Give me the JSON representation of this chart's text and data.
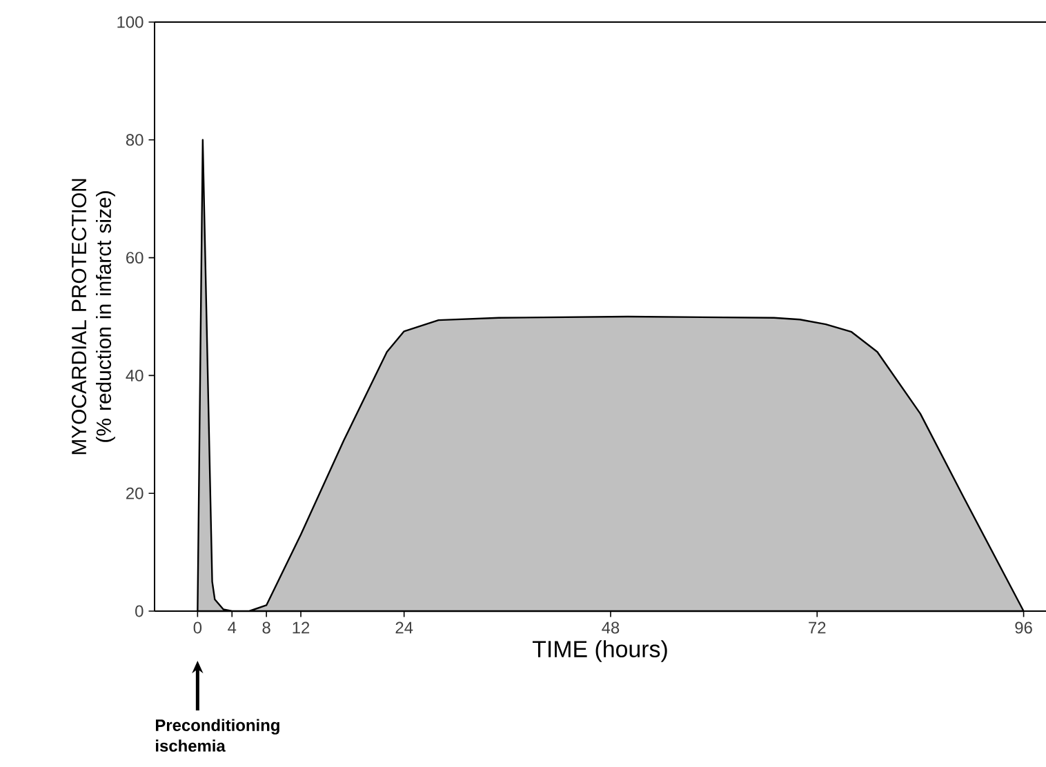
{
  "chart_data": {
    "type": "area",
    "xlabel": "TIME  (hours)",
    "ylabel": "MYOCARDIAL PROTECTION (% reduction in infarct size)",
    "x": [
      0,
      0.6,
      1.7,
      2,
      3,
      4,
      6,
      8,
      12,
      17,
      22,
      24,
      28,
      35,
      50,
      67,
      70,
      73,
      76,
      79,
      84,
      89,
      96
    ],
    "values": [
      0,
      80,
      5,
      2,
      0.3,
      0,
      0,
      1,
      13,
      29,
      44,
      47.5,
      49.4,
      49.8,
      50,
      49.8,
      49.5,
      48.7,
      47.4,
      44,
      33.5,
      19.4,
      0
    ],
    "color": "#c0c0c0",
    "xlim": [
      -5,
      98.6
    ],
    "ylim": [
      0,
      100
    ],
    "xticks": [
      0,
      4,
      8,
      12,
      24,
      48,
      72,
      96
    ],
    "yticks": [
      0,
      20,
      40,
      60,
      80,
      100
    ],
    "annotations": [
      "Preconditioning ischemia"
    ]
  }
}
